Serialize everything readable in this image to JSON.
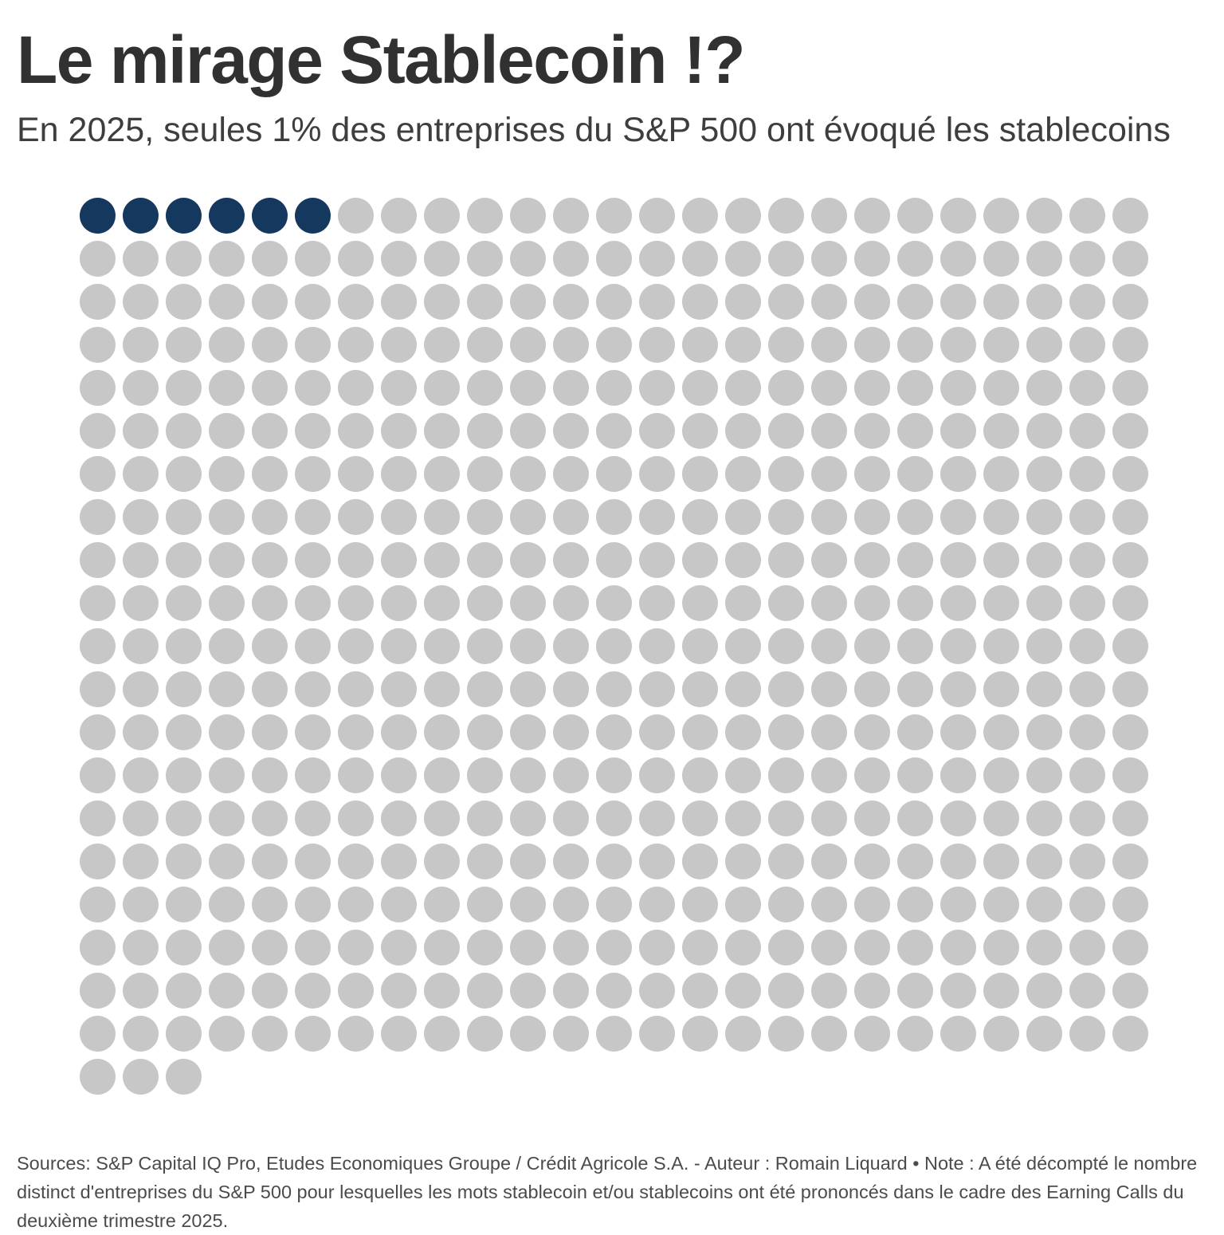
{
  "header": {
    "title": "Le mirage Stablecoin !?",
    "subtitle": "En 2025, seules 1% des entreprises du S&P 500 ont évoqué les stablecoins"
  },
  "chart_data": {
    "type": "waffle",
    "title": "Le mirage Stablecoin !?",
    "subtitle": "En 2025, seules 1% des entreprises du S&P 500 ont évoqué les stablecoins",
    "total_units": 503,
    "highlighted_units": 6,
    "remaining_units": 497,
    "highlighted_share_label": "1%",
    "columns": 25,
    "full_rows": 20,
    "last_row_units": 3,
    "highlight_color": "#15395e",
    "default_color": "#c7c7c7",
    "legend": null,
    "grid": "off",
    "axes": "none"
  },
  "footer": {
    "note": "Sources: S&P Capital IQ Pro, Etudes Economiques Groupe / Crédit Agricole S.A. - Auteur : Romain Liquard • Note : A été décompté le nombre distinct d'entreprises du S&P 500 pour lesquelles les mots stablecoin et/ou stablecoins ont été prononcés dans le cadre des Earning Calls du deuxième trimestre 2025."
  }
}
